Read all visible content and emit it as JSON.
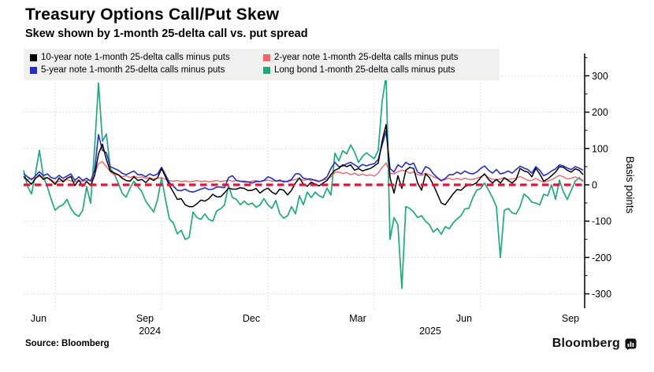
{
  "header": {
    "title": "Treasury Options Call/Put Skew",
    "subtitle": "Skew shown by 1-month 25-delta call vs. put spread"
  },
  "legend": {
    "items": [
      {
        "label": "10-year note 1-month 25-delta calls minus puts",
        "color": "#000000"
      },
      {
        "label": "2-year note 1-month 25-delta calls minus puts",
        "color": "#ef666a"
      },
      {
        "label": "5-year note 1-month 25-delta calls minus puts",
        "color": "#2430c4"
      },
      {
        "label": "Long bond 1-month 25-delta calls minus puts",
        "color": "#1fa97e"
      }
    ]
  },
  "chart_data": {
    "type": "line",
    "title": "Treasury Options Call/Put Skew",
    "subtitle": "Skew shown by 1-month 25-delta call vs. put spread",
    "x_axis": {
      "unit": "month index: 0 = Jun 2024, 3 = Sep 2024, 6 = Dec 2024, 9 = Mar 2025, 12 = Jun 2025, 15 = Sep 2025",
      "tick_labels": [
        "Jun",
        "Sep",
        "Dec",
        "Mar",
        "Jun",
        "Sep"
      ],
      "tick_months": [
        0,
        3,
        6,
        9,
        12,
        15
      ],
      "year_labels": [
        {
          "label": "2024",
          "month": 2.67
        },
        {
          "label": "2025",
          "month": 10.58
        }
      ],
      "xlim": [
        -0.89,
        14.95
      ],
      "grid": true
    },
    "y_axis": {
      "label": "Basis points",
      "ticks": [
        300,
        200,
        100,
        0,
        -100,
        -200,
        -300
      ],
      "minor_ticks": [
        350,
        250,
        150,
        50,
        -50,
        -150,
        -250
      ],
      "ylim": [
        -340,
        360
      ],
      "grid": true,
      "position": "right"
    },
    "zero_line": {
      "value": 0,
      "style": "dashed",
      "color": "#e11439"
    },
    "sampling": {
      "x_start_month": -0.8889,
      "x_step_month": 0.111111
    },
    "series": [
      {
        "key": "long-bond",
        "name": "Long bond 1-month 25-delta calls minus puts",
        "color": "#1fa97e",
        "width": 1.7,
        "values": [
          40,
          -5,
          -25,
          30,
          95,
          23,
          -5,
          -40,
          -70,
          -60,
          -55,
          -40,
          -65,
          -80,
          -87,
          -70,
          -5,
          -51,
          100,
          280,
          120,
          140,
          45,
          30,
          5,
          -23,
          -34,
          -10,
          10,
          -5,
          -19,
          -45,
          -60,
          -75,
          -40,
          20,
          -40,
          -94,
          -105,
          -135,
          -125,
          -150,
          -145,
          -75,
          -90,
          -95,
          -80,
          -95,
          -100,
          -72,
          -66,
          -55,
          -2,
          -35,
          -40,
          -55,
          -45,
          -55,
          -50,
          -62,
          -55,
          -38,
          -55,
          -65,
          -43,
          -79,
          -92,
          -85,
          -60,
          -80,
          -30,
          -55,
          -20,
          -35,
          -20,
          -30,
          -35,
          -9,
          -28,
          87,
          66,
          94,
          85,
          110,
          90,
          62,
          78,
          88,
          80,
          72,
          95,
          230,
          300,
          -150,
          -90,
          -110,
          -285,
          -60,
          -65,
          -75,
          -90,
          -85,
          -100,
          -110,
          -130,
          -120,
          -136,
          -115,
          -121,
          -105,
          -94,
          -85,
          -66,
          -65,
          -36,
          -15,
          -10,
          5,
          -15,
          -35,
          -60,
          -200,
          -70,
          -65,
          -77,
          -80,
          -60,
          -25,
          -34,
          -48,
          -50,
          -55,
          -26,
          -30,
          0,
          -40,
          13,
          -20,
          -40,
          -15,
          10,
          20,
          9
        ]
      },
      {
        "key": "two-year",
        "name": "2-year note 1-month 25-delta calls minus puts",
        "color": "#ef666a",
        "width": 1.4,
        "values": [
          17,
          15,
          17,
          20,
          23,
          21,
          20,
          14,
          6,
          10,
          13,
          14,
          11,
          8,
          11,
          10,
          12,
          13,
          28,
          58,
          64,
          50,
          36,
          27,
          28,
          22,
          25,
          20,
          24,
          20,
          22,
          18,
          20,
          16,
          18,
          20,
          15,
          12,
          10,
          12,
          9,
          11,
          8,
          10,
          12,
          9,
          11,
          8,
          10,
          12,
          9,
          11,
          13,
          10,
          12,
          9,
          11,
          8,
          10,
          12,
          9,
          11,
          13,
          10,
          12,
          9,
          11,
          8,
          12,
          15,
          18,
          12,
          15,
          12,
          14,
          10,
          13,
          16,
          22,
          34,
          36,
          31,
          34,
          28,
          32,
          26,
          30,
          25,
          28,
          24,
          32,
          48,
          60,
          32,
          30,
          36,
          40,
          38,
          32,
          35,
          28,
          26,
          32,
          28,
          22,
          18,
          10,
          15,
          18,
          14,
          18,
          14,
          18,
          15,
          15,
          18,
          22,
          28,
          20,
          15,
          14,
          16,
          20,
          15,
          16,
          18,
          23,
          18,
          12,
          12,
          18,
          12,
          7,
          10,
          14,
          20,
          26,
          22,
          16,
          18,
          22,
          16,
          13
        ]
      },
      {
        "key": "five-year",
        "name": "5-year note 1-month 25-delta calls minus puts",
        "color": "#2430c4",
        "width": 1.6,
        "values": [
          30,
          22,
          14,
          25,
          36,
          25,
          30,
          20,
          17,
          26,
          18,
          24,
          30,
          12,
          22,
          12,
          18,
          10,
          40,
          138,
          95,
          88,
          50,
          45,
          40,
          32,
          28,
          33,
          38,
          28,
          28,
          22,
          30,
          25,
          30,
          48,
          28,
          6,
          -3,
          -15,
          -16,
          -12,
          -18,
          -20,
          -16,
          -12,
          -8,
          -13,
          -12,
          -6,
          -6,
          -8,
          20,
          25,
          12,
          10,
          8,
          8,
          5,
          9,
          9,
          12,
          22,
          18,
          10,
          13,
          8,
          10,
          15,
          30,
          30,
          18,
          16,
          16,
          12,
          9,
          14,
          22,
          45,
          62,
          50,
          52,
          58,
          62,
          55,
          48,
          56,
          52,
          56,
          58,
          70,
          110,
          148,
          45,
          35,
          55,
          48,
          62,
          55,
          60,
          35,
          30,
          50,
          45,
          30,
          20,
          12,
          17,
          28,
          28,
          35,
          30,
          38,
          32,
          30,
          35,
          45,
          52,
          40,
          32,
          42,
          30,
          33,
          38,
          32,
          42,
          51,
          46,
          42,
          32,
          50,
          40,
          25,
          30,
          38,
          44,
          55,
          52,
          46,
          42,
          50,
          46,
          40
        ]
      },
      {
        "key": "ten-year",
        "name": "10-year note 1-month 25-delta calls minus puts",
        "color": "#000000",
        "width": 1.5,
        "values": [
          23,
          12,
          2,
          17,
          28,
          15,
          20,
          12,
          1,
          19,
          8,
          18,
          23,
          -2,
          13,
          -4,
          9,
          -2,
          25,
          85,
          112,
          70,
          38,
          33,
          28,
          18,
          12,
          10,
          22,
          12,
          15,
          6,
          18,
          12,
          20,
          45,
          22,
          -2,
          -20,
          -40,
          -38,
          -55,
          -60,
          -60,
          -52,
          -42,
          -45,
          -38,
          -26,
          -33,
          -33,
          -22,
          -9,
          -12,
          -12,
          -8,
          -10,
          -16,
          -15,
          -10,
          -23,
          -14,
          -9,
          -20,
          -26,
          -12,
          -15,
          -28,
          -15,
          5,
          19,
          2,
          -4,
          7,
          2,
          -3,
          5,
          12,
          28,
          40,
          45,
          55,
          50,
          55,
          40,
          45,
          38,
          42,
          45,
          52,
          60,
          120,
          166,
          20,
          -23,
          25,
          -10,
          40,
          48,
          45,
          5,
          -15,
          30,
          20,
          0,
          -25,
          -50,
          -55,
          -40,
          -25,
          -13,
          -15,
          -5,
          0,
          0,
          6,
          20,
          30,
          15,
          5,
          15,
          5,
          19,
          12,
          5,
          15,
          45,
          38,
          35,
          22,
          45,
          30,
          10,
          16,
          25,
          35,
          50,
          48,
          40,
          35,
          44,
          40,
          28
        ]
      }
    ]
  },
  "footer": {
    "source": "Source: Bloomberg",
    "brand": "Bloomberg"
  }
}
